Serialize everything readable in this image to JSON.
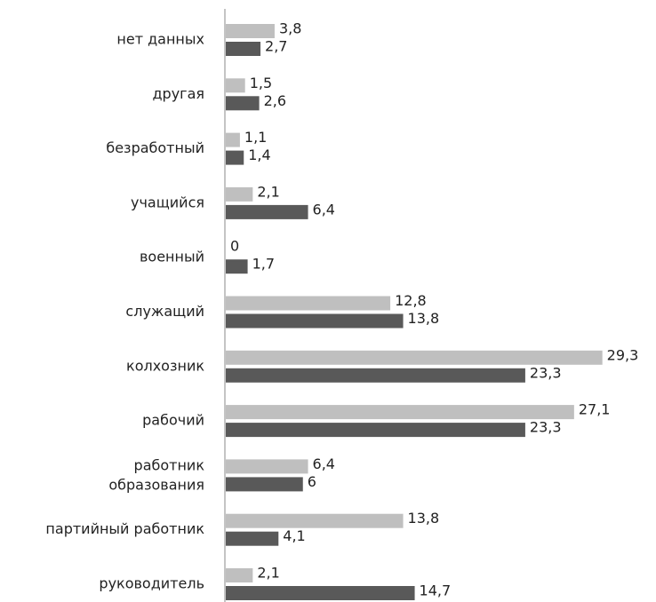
{
  "chart_data": {
    "type": "hbar",
    "categories": [
      "нет данных",
      "другая",
      "безработный",
      "учащийся",
      "военный",
      "служащий",
      "колхозник",
      "рабочий",
      "работник\nобразования",
      "партийный работник",
      "руководитель"
    ],
    "series": [
      {
        "color": "#bfbfbf",
        "values": [
          3.8,
          1.5,
          1.1,
          2.1,
          0,
          12.8,
          29.3,
          27.1,
          6.4,
          13.8,
          2.1
        ],
        "value_labels": [
          "3,8",
          "1,5",
          "1,1",
          "2,1",
          "0",
          "12,8",
          "29,3",
          "27,1",
          "6,4",
          "13,8",
          "2,1"
        ]
      },
      {
        "color": "#595959",
        "values": [
          2.7,
          2.6,
          1.4,
          6.4,
          1.7,
          13.8,
          23.3,
          23.3,
          6,
          4.1,
          14.7
        ],
        "value_labels": [
          "2,7",
          "2,6",
          "1,4",
          "6,4",
          "1,7",
          "13,8",
          "23,3",
          "23,3",
          "6",
          "4,1",
          "14,7"
        ]
      }
    ]
  }
}
